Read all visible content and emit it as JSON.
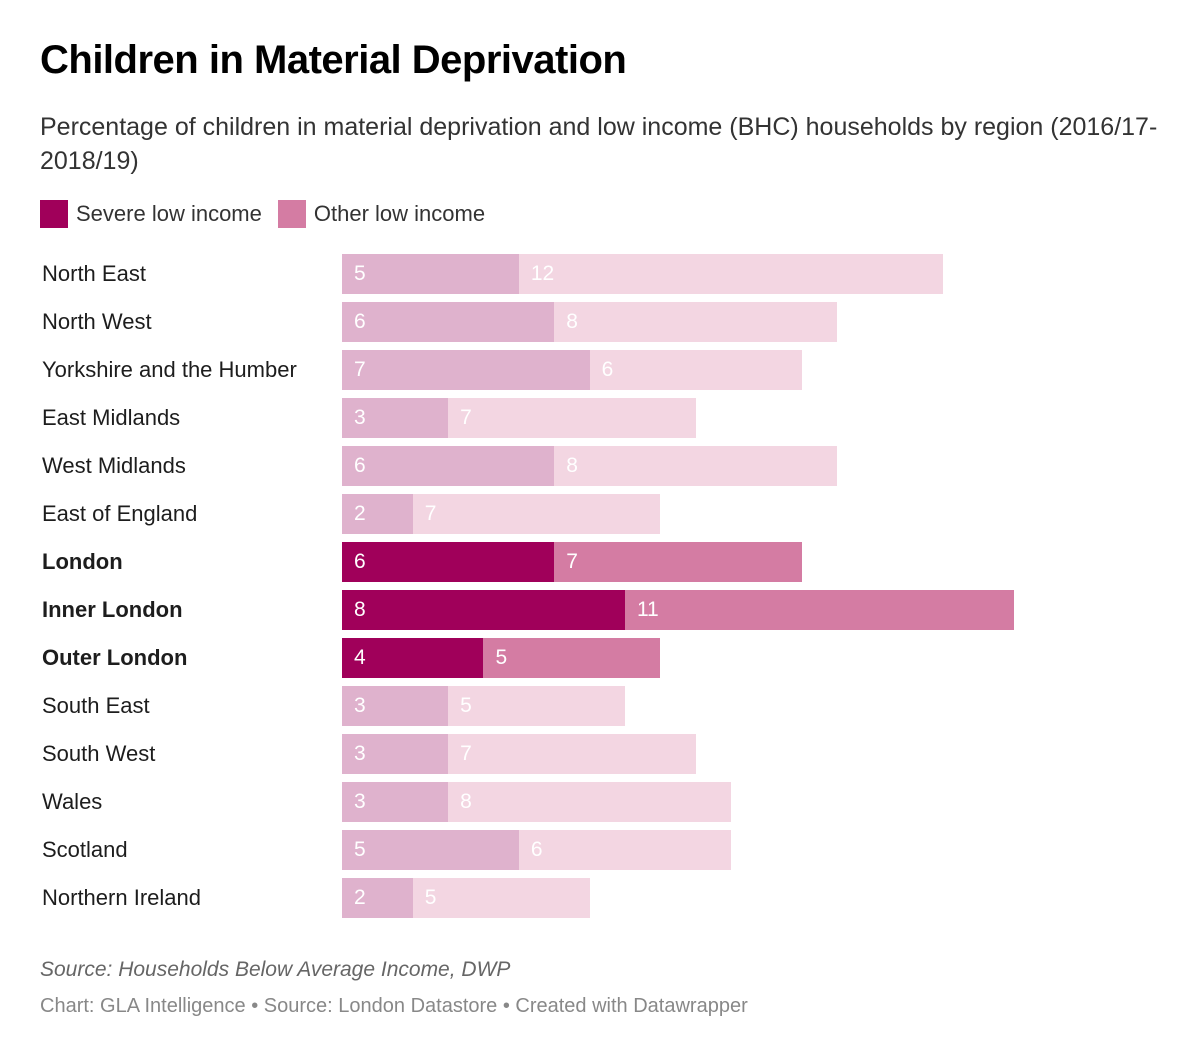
{
  "chart_data": {
    "type": "bar",
    "orientation": "horizontal",
    "stacked": true,
    "title": "Children in Material Deprivation",
    "subtitle": "Percentage of children in material deprivation and low income (BHC) households by region (2016/17-2018/19)",
    "xlabel": "",
    "ylabel": "",
    "xlim": [
      0,
      19
    ],
    "grid": false,
    "legend_position": "top-left",
    "legend": [
      {
        "name": "Severe low income",
        "color": "#a0005a"
      },
      {
        "name": "Other low income",
        "color": "#d47ca3"
      }
    ],
    "categories": [
      "North East",
      "North West",
      "Yorkshire and the Humber",
      "East Midlands",
      "West Midlands",
      "East of England",
      "London",
      "Inner London",
      "Outer London",
      "South East",
      "South West",
      "Wales",
      "Scotland",
      "Northern Ireland"
    ],
    "highlighted": [
      "London",
      "Inner London",
      "Outer London"
    ],
    "series": [
      {
        "name": "Severe low income",
        "values": [
          5,
          6,
          7,
          3,
          6,
          2,
          6,
          8,
          4,
          3,
          3,
          3,
          5,
          2
        ]
      },
      {
        "name": "Other low income",
        "values": [
          12,
          8,
          6,
          7,
          8,
          7,
          7,
          11,
          5,
          5,
          7,
          8,
          6,
          5
        ]
      }
    ],
    "colors": {
      "severe_highlight": "#a0005a",
      "other_highlight": "#d47ca3",
      "severe_muted": "#dfb2cd",
      "other_muted": "#f3d6e2"
    },
    "notes": "Source: Households Below Average Income, DWP"
  },
  "legend_labels": [
    "Severe low income",
    "Other low income"
  ],
  "footer": {
    "notes": "Source: Households Below Average Income, DWP",
    "byline": "Chart: GLA Intelligence • Source: London Datastore • Created with Datawrapper"
  }
}
